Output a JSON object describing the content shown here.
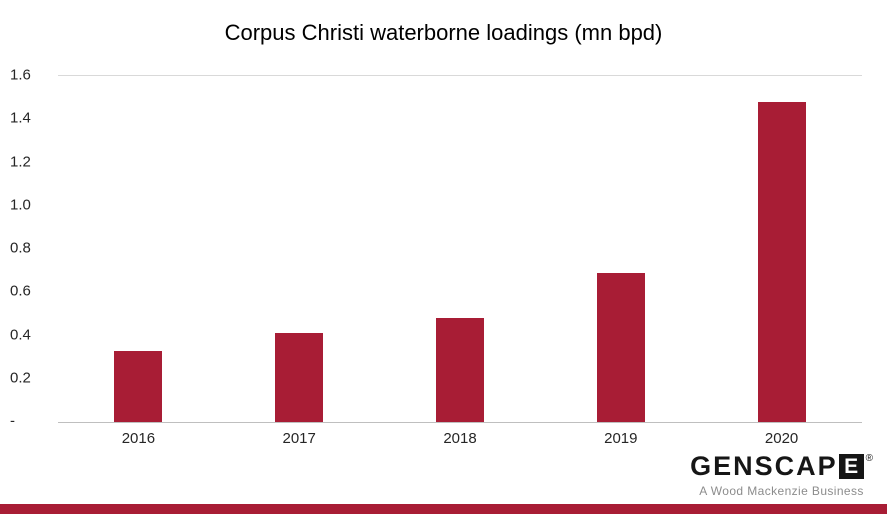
{
  "chart_data": {
    "type": "bar",
    "title": "Corpus Christi waterborne loadings (mn bpd)",
    "categories": [
      "2016",
      "2017",
      "2018",
      "2019",
      "2020"
    ],
    "values": [
      0.33,
      0.41,
      0.48,
      0.69,
      1.48
    ],
    "xlabel": "",
    "ylabel": "",
    "ylim": [
      0,
      1.6
    ],
    "yticks": [
      0,
      0.2,
      0.4,
      0.6,
      0.8,
      1.0,
      1.2,
      1.4,
      1.6
    ],
    "ytick_labels": [
      "-",
      "0.2",
      "0.4",
      "0.6",
      "0.8",
      "1.0",
      "1.2",
      "1.4",
      "1.6"
    ],
    "bar_color": "#A81D35",
    "grid": false,
    "legend": false
  },
  "branding": {
    "logo_text": "GENSCAP",
    "logo_last_letter": "E",
    "registered_mark": "®",
    "tagline": "A Wood Mackenzie Business"
  },
  "footer": {
    "strip_color": "#A81D35"
  }
}
